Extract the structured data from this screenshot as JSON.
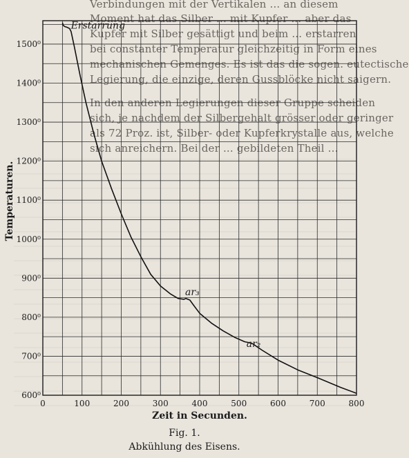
{
  "page": {
    "figure_number": "Fig. 1.",
    "caption": "Abkühlung des Eisens."
  },
  "bleed_text": [
    "Verbindungen mit der Vertikalen ... an diesem",
    "Moment hat das Silber ... mit Kupfer ... aber das",
    "Kupfer mit Silber gesättigt und beim ... erstarren",
    "bei constanter Temperatur gleichzeitig in Form eines",
    "mechanischen Gemenges. Es ist das die sogen. eutectische",
    "Legierung, die einzige, deren Gussblöcke nicht saigern.",
    "In den anderen Legierungen dieser Gruppe scheiden",
    "sich, je nachdem der Silbergehalt grösser oder geringer",
    "als 72 Proz. ist, Silber- oder Kupferkrystalle aus, welche",
    "sich anreichern. Bei der ... gebildeten Theil ..."
  ],
  "chart_data": {
    "type": "line",
    "title": "",
    "xlabel": "Zeit in Secunden.",
    "ylabel": "Temperaturen.",
    "xlim": [
      0,
      800
    ],
    "ylim": [
      600,
      1560
    ],
    "grid": true,
    "x_ticks": [
      0,
      100,
      200,
      300,
      400,
      500,
      600,
      700,
      800
    ],
    "x_tick_labels": [
      "0",
      "100",
      "200",
      "300",
      "400",
      "500",
      "600",
      "700",
      "800"
    ],
    "y_ticks": [
      600,
      700,
      800,
      900,
      1000,
      1100,
      1200,
      1300,
      1400,
      1500
    ],
    "y_tick_labels": [
      "600⁰",
      "700⁰",
      "800⁰",
      "900⁰",
      "1000⁰",
      "1100⁰",
      "1200⁰",
      "1300⁰",
      "1400⁰",
      "1500⁰"
    ],
    "series": [
      {
        "x": [
          50,
          52,
          56,
          62,
          68,
          72,
          80,
          95,
          110,
          130,
          150,
          175,
          200,
          225,
          250,
          275,
          300,
          325,
          345,
          360,
          365,
          375,
          385,
          400,
          430,
          460,
          490,
          515,
          525,
          535,
          560,
          600,
          650,
          700,
          760,
          800
        ],
        "y": [
          1555,
          1548,
          1545,
          1543,
          1540,
          1532,
          1495,
          1420,
          1350,
          1270,
          1200,
          1130,
          1065,
          1005,
          955,
          910,
          880,
          860,
          848,
          846,
          848,
          844,
          830,
          810,
          785,
          765,
          748,
          737,
          735,
          732,
          715,
          690,
          665,
          645,
          620,
          605
        ]
      }
    ],
    "annotations": [
      {
        "text": "Erstarrung",
        "x": 68,
        "y": 1540
      },
      {
        "text": "ar₃",
        "x": 370,
        "y": 846
      },
      {
        "text": "ar₂",
        "x": 530,
        "y": 734
      }
    ]
  }
}
